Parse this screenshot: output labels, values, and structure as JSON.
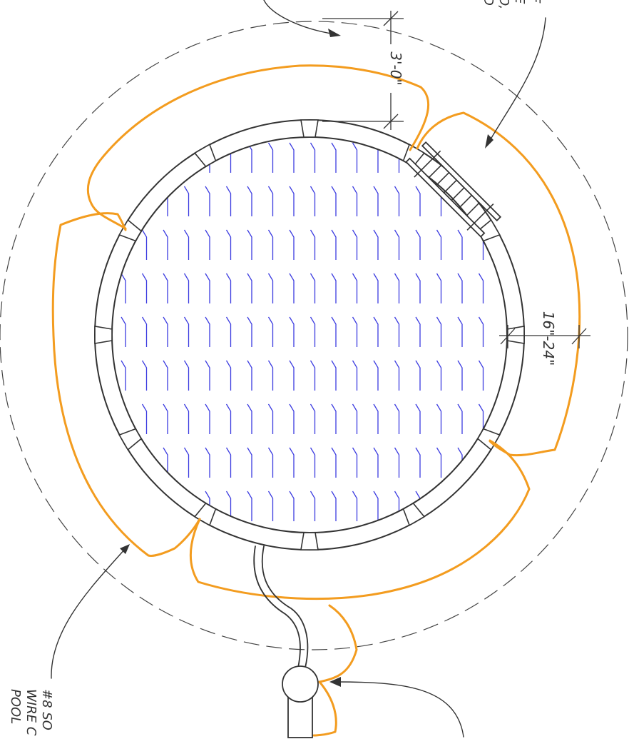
{
  "diagram": {
    "dimensions": {
      "clearance": "3'-0\"",
      "depth": "16\"-24\""
    },
    "notes": {
      "bottom_left_lines": [
        "#8 SO",
        "WIRE C",
        "POOL"
      ],
      "top_right_fragment": [
        "F",
        "E",
        "O,",
        "D"
      ]
    },
    "colors": {
      "bonding_wire": "#f39c1f",
      "water_hatch": "#3a3ae0",
      "linework": "#333333"
    }
  }
}
